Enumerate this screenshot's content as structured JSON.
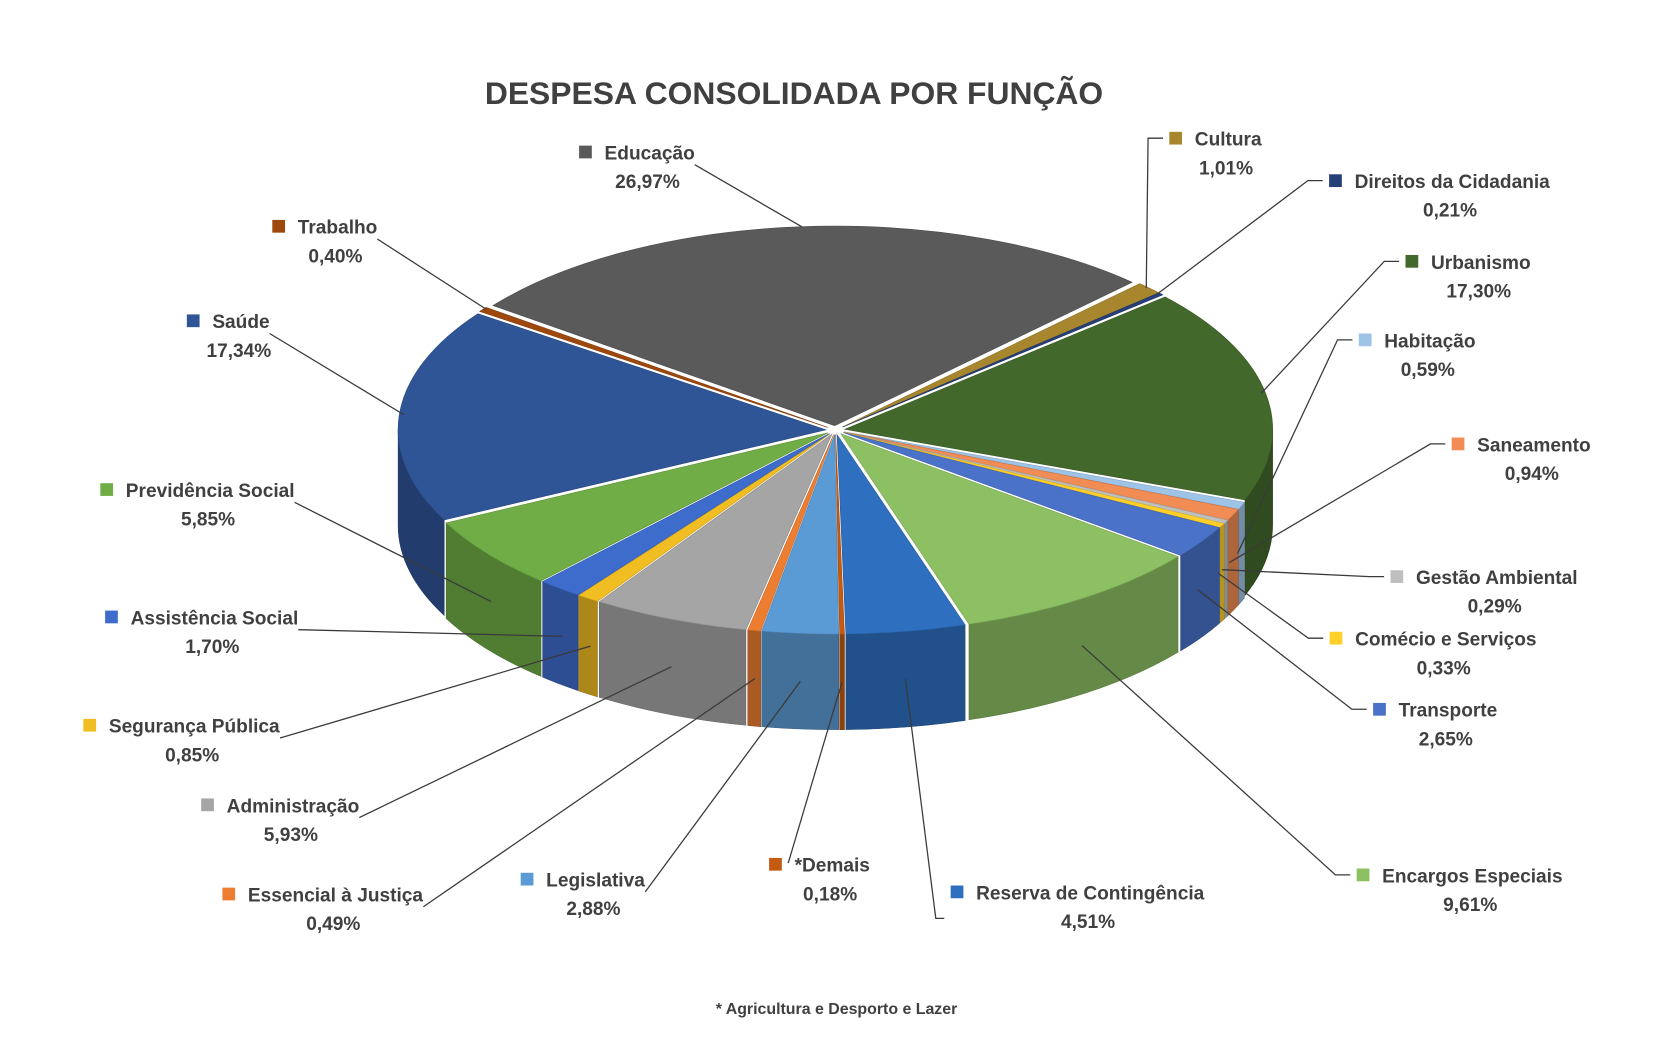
{
  "chart_data": {
    "type": "pie",
    "title": "DESPESA CONSOLIDADA POR FUNÇÃO",
    "footnote": "* Agricultura e Desporto e Lazer",
    "categories": [
      "Educação",
      "Cultura",
      "Direitos da Cidadania",
      "Urbanismo",
      "Habitação",
      "Saneamento",
      "Gestão Ambiental",
      "Comécio e Serviços",
      "Transporte",
      "Encargos Especiais",
      "Reserva de Contingência",
      "*Demais",
      "Legislativa",
      "Essencial à Justiça",
      "Administração",
      "Segurança Pública",
      "Assistência Social",
      "Previdência Social",
      "Saúde",
      "Trabalho"
    ],
    "values": [
      26.97,
      1.01,
      0.21,
      17.3,
      0.59,
      0.94,
      0.29,
      0.33,
      2.65,
      9.61,
      4.51,
      0.18,
      2.88,
      0.49,
      5.93,
      0.85,
      1.7,
      5.85,
      17.34,
      0.4
    ],
    "value_labels": [
      "26,97%",
      "1,01%",
      "0,21%",
      "17,30%",
      "0,59%",
      "0,94%",
      "0,29%",
      "0,33%",
      "2,65%",
      "9,61%",
      "4,51%",
      "0,18%",
      "2,88%",
      "0,49%",
      "5,93%",
      "0,85%",
      "1,70%",
      "5,85%",
      "17,34%",
      "0,40%"
    ],
    "colors": [
      "#5a5a5a",
      "#a8862e",
      "#263f78",
      "#43682b",
      "#9dc3e6",
      "#f08c54",
      "#bfbfbf",
      "#ffd02a",
      "#4a72c8",
      "#8cc063",
      "#2e6fbf",
      "#c55a11",
      "#5b9bd5",
      "#ed7d31",
      "#a5a5a5",
      "#f0bd22",
      "#3e6ccc",
      "#70ad47",
      "#2f5597",
      "#9e480e"
    ]
  }
}
